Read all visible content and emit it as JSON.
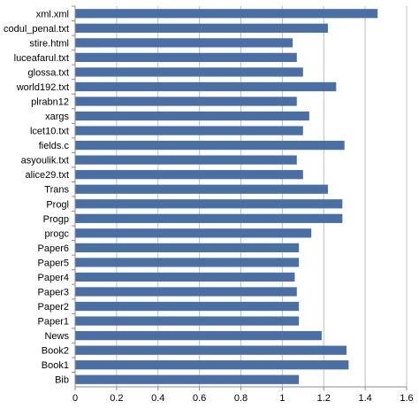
{
  "chart_data": {
    "type": "bar",
    "orientation": "horizontal",
    "title": "",
    "xlabel": "",
    "ylabel": "",
    "categories": [
      "xml.xml",
      "codul_penal.txt",
      "stire.html",
      "luceafarul.txt",
      "glossa.txt",
      "world192.txt",
      "plrabn12",
      "xargs",
      "lcet10.txt",
      "fields.c",
      "asyoulik.txt",
      "alice29.txt",
      "Trans",
      "Progl",
      "Progp",
      "progc",
      "Paper6",
      "Paper5",
      "Paper4",
      "Paper3",
      "Paper2",
      "Paper1",
      "News",
      "Book2",
      "Book1",
      "Bib"
    ],
    "values": [
      1.46,
      1.22,
      1.05,
      1.07,
      1.1,
      1.26,
      1.07,
      1.13,
      1.1,
      1.3,
      1.07,
      1.1,
      1.22,
      1.29,
      1.29,
      1.14,
      1.08,
      1.08,
      1.06,
      1.07,
      1.08,
      1.08,
      1.19,
      1.31,
      1.32,
      1.08
    ],
    "xlim": [
      0,
      1.6
    ],
    "xticks": [
      "0",
      "0.2",
      "0.4",
      "0.6",
      "0.8",
      "1",
      "1.2",
      "1.4",
      "1.6"
    ],
    "grid": true,
    "legend": "none",
    "colors": {
      "bar": "#4a6fa5",
      "grid": "#bfbfbf",
      "axis": "#8c8c8c"
    }
  }
}
